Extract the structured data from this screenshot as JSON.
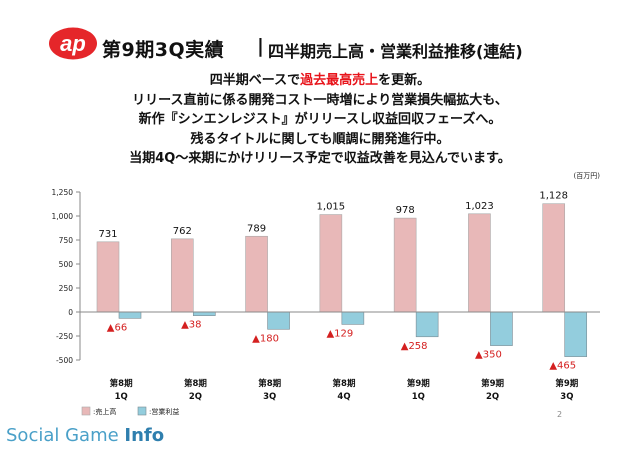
{
  "slide": {
    "title_main": "第9期3Q実績",
    "title_separator": "|",
    "title_sub": "四半期売上高・営業利益推移(連結)",
    "summary": [
      {
        "pre": "四半期ベースで",
        "highlight": "過去最高売上",
        "post": "を更新。"
      },
      {
        "pre": "リリース直前に係る開発コスト一時増により営業損失幅拡大も、",
        "highlight": "",
        "post": ""
      },
      {
        "pre": "新作『シンエンレジスト』がリリースし収益回収フェーズへ。",
        "highlight": "",
        "post": ""
      },
      {
        "pre": "残るタイトルに関しても順調に開発進行中。",
        "highlight": "",
        "post": ""
      },
      {
        "pre": "当期4Q～来期にかけリリース予定で収益改善を見込んでいます。",
        "highlight": "",
        "post": ""
      }
    ],
    "page_number": "2",
    "logo_text": "ap",
    "watermark": {
      "prefix": "Social Game ",
      "suffix": "Info"
    },
    "colors": {
      "highlight": "#e8141b",
      "sales_fill": "#e8b8b8",
      "profit_fill": "#93cddd",
      "negative_label": "#d42020",
      "logo": "#e5262a"
    }
  },
  "chart_data": {
    "type": "bar",
    "unit": "(百万円)",
    "categories": [
      [
        "第8期",
        "1Q"
      ],
      [
        "第8期",
        "2Q"
      ],
      [
        "第8期",
        "3Q"
      ],
      [
        "第8期",
        "4Q"
      ],
      [
        "第9期",
        "1Q"
      ],
      [
        "第9期",
        "2Q"
      ],
      [
        "第9期",
        "3Q"
      ]
    ],
    "series": [
      {
        "name": ":売上高",
        "values": [
          731,
          762,
          789,
          1015,
          978,
          1023,
          1128
        ],
        "labels": [
          "731",
          "762",
          "789",
          "1,015",
          "978",
          "1,023",
          "1,128"
        ]
      },
      {
        "name": ":営業利益",
        "values": [
          -66,
          -38,
          -180,
          -129,
          -258,
          -350,
          -465
        ],
        "labels": [
          "▲66",
          "▲38",
          "▲180",
          "▲129",
          "▲258",
          "▲350",
          "▲465"
        ]
      }
    ],
    "ylim": [
      -500,
      1250
    ],
    "yticks": [
      -500,
      -250,
      0,
      250,
      500,
      750,
      1000,
      1250
    ],
    "ytick_labels": [
      "-500",
      "-250",
      "0",
      "250",
      "500",
      "750",
      "1,000",
      "1,250"
    ],
    "grid": false,
    "legend": "bottom-left"
  }
}
